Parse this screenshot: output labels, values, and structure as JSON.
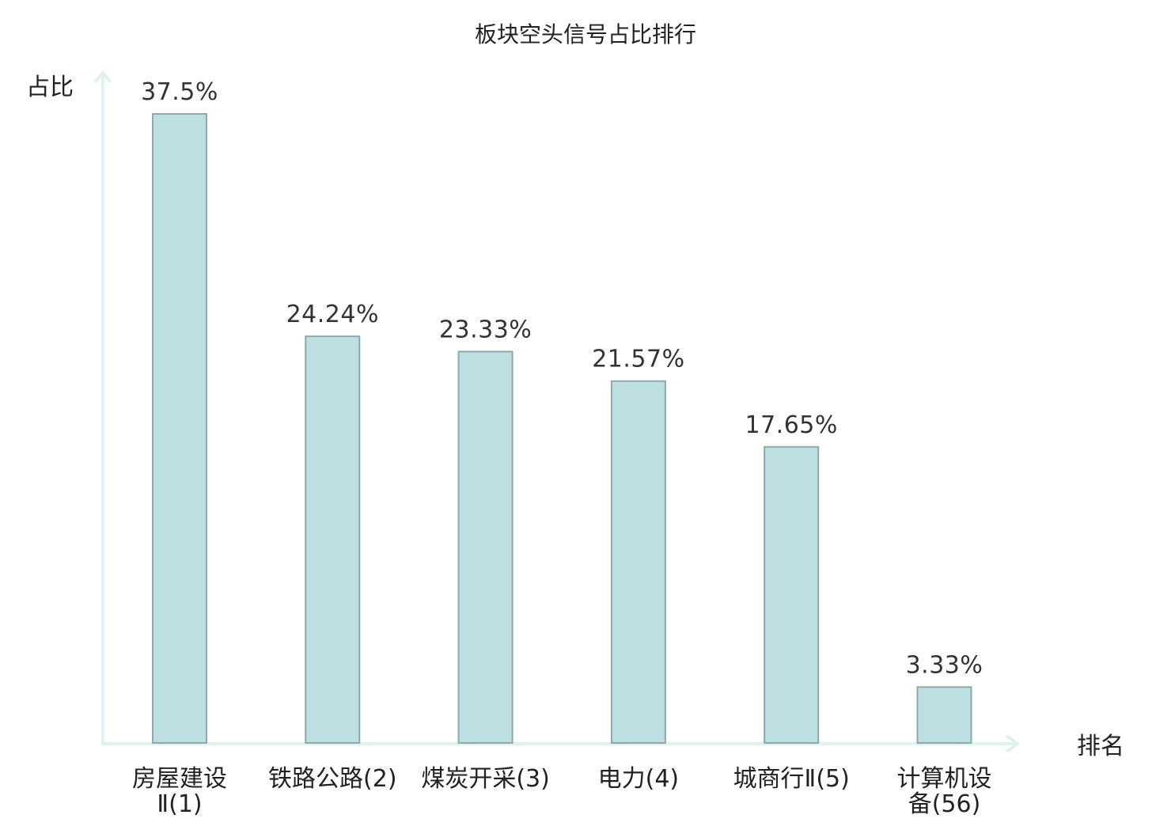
{
  "chart_data": {
    "type": "bar",
    "title": "板块空头信号占比排行",
    "xlabel": "排名",
    "ylabel": "占比",
    "categories": [
      [
        "房屋建设",
        "Ⅱ(1)"
      ],
      [
        "铁路公路(2)"
      ],
      [
        "煤炭开采(3)"
      ],
      [
        "电力(4)"
      ],
      [
        "城商行Ⅱ(5)"
      ],
      [
        "计算机设",
        "备(56)"
      ]
    ],
    "values": [
      37.5,
      24.24,
      23.33,
      21.57,
      17.65,
      3.33
    ],
    "value_labels": [
      "37.5%",
      "24.24%",
      "23.33%",
      "21.57%",
      "17.65%",
      "3.33%"
    ],
    "highlight_index": 5,
    "ylim": [
      0,
      37.5
    ],
    "grid": false,
    "colors": {
      "bar_fill": "#bce0e2",
      "bar_stroke": "#8fa8ab",
      "axis": "#e0f2ef",
      "highlight_text": "#e31a1c",
      "text": "#222222"
    }
  }
}
